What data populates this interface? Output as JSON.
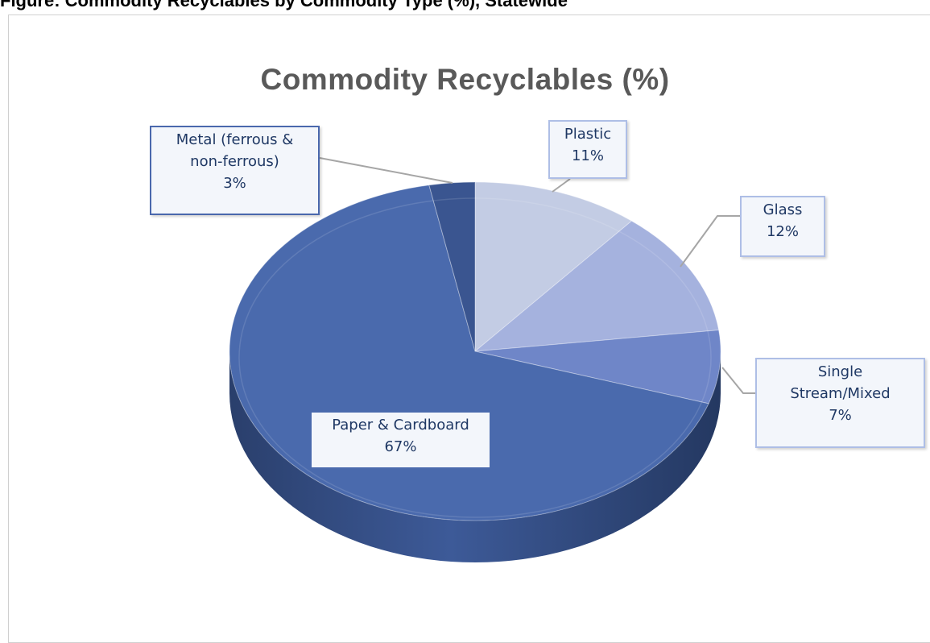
{
  "page_heading": "Figure: Commodity Recyclables by Commodity Type (%), Statewide",
  "chart_data": {
    "type": "pie",
    "title": "Commodity Recyclables (%)",
    "slices": [
      {
        "label": "Plastic",
        "value": 11,
        "value_label": "11%",
        "color": "#c3cce4"
      },
      {
        "label": "Glass",
        "value": 12,
        "value_label": "12%",
        "color": "#a5b2de"
      },
      {
        "label": "Single Stream/Mixed",
        "value": 7,
        "value_label": "7%",
        "color": "#6f86c8"
      },
      {
        "label": "Paper & Cardboard",
        "value": 67,
        "value_label": "67%",
        "color": "#4a6aad"
      },
      {
        "label": "Metal (ferrous & non-ferrous)",
        "value": 3,
        "value_label": "3%",
        "color": "#3a5590"
      }
    ],
    "legend": "none",
    "data_labels": "category and percentage"
  },
  "labels": {
    "plastic": {
      "l1": "Plastic",
      "l2": "11%"
    },
    "glass": {
      "l1": "Glass",
      "l2": "12%"
    },
    "single": {
      "l1": "Single",
      "l2": "Stream/Mixed",
      "l3": "7%"
    },
    "paper": {
      "l1": "Paper & Cardboard",
      "l2": "67%"
    },
    "metal": {
      "l1": "Metal (ferrous &",
      "l2": "non-ferrous)",
      "l3": "3%"
    }
  }
}
